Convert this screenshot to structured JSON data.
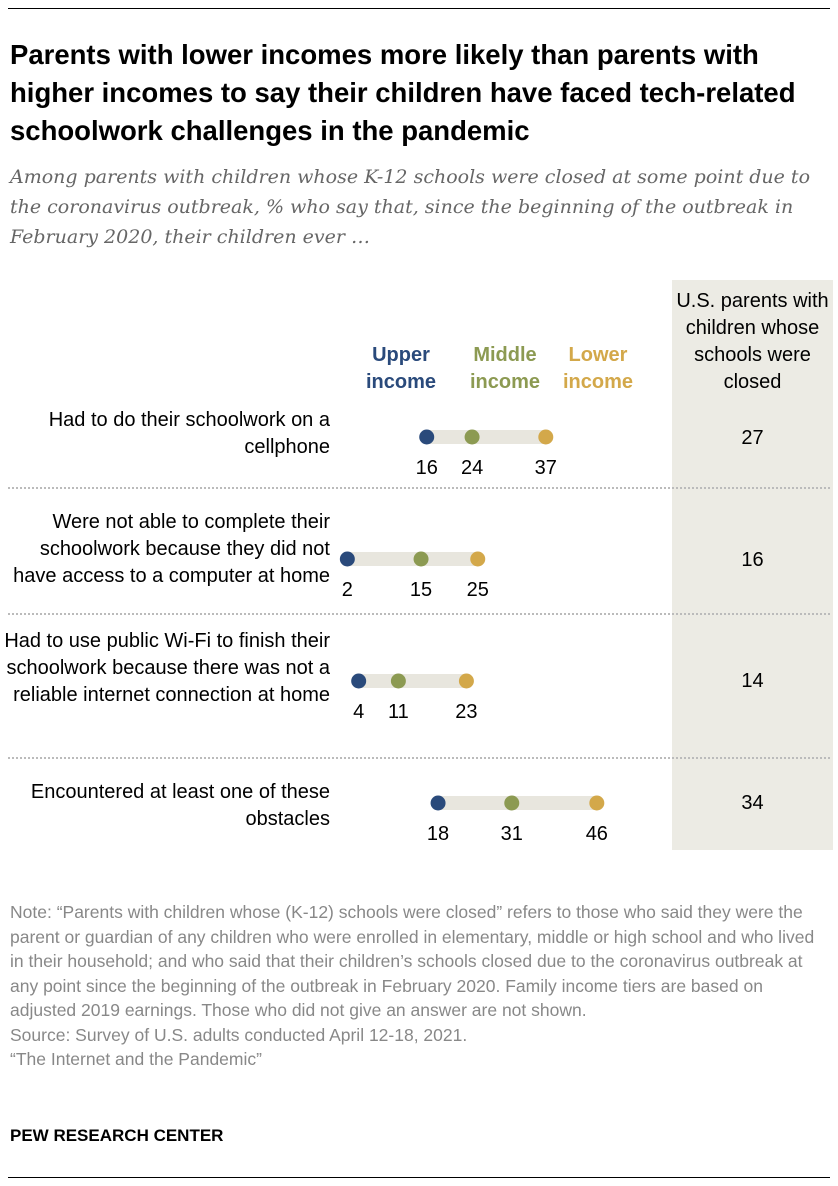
{
  "title": "Parents with lower incomes more likely than parents with higher incomes to say their children have faced tech-related schoolwork challenges in the pandemic",
  "subtitle": "Among parents with children whose K-12 schools were closed at some point due to the coronavirus outbreak, % who say that, since the beginning of the outbreak in February 2020, their children ever …",
  "total_header": "U.S. parents with children whose schools were closed",
  "chart_data": {
    "type": "dot",
    "series": [
      {
        "name": "Upper income",
        "color": "#2a4a7b",
        "values": [
          16,
          2,
          4,
          18
        ]
      },
      {
        "name": "Middle income",
        "color": "#8c9a52",
        "values": [
          24,
          15,
          11,
          31
        ]
      },
      {
        "name": "Lower income",
        "color": "#d3a84a",
        "values": [
          37,
          25,
          23,
          46
        ]
      }
    ],
    "categories": [
      "Had to do their schoolwork on a cellphone",
      "Were not able to complete their schoolwork because they did not have access to a computer at home",
      "Had to use public Wi-Fi to finish their schoolwork because there was not a reliable internet connection at home",
      "Encountered at least one of these obstacles"
    ],
    "totals": [
      "27",
      "16",
      "14",
      "34"
    ]
  },
  "legend": {
    "upper": "Upper income",
    "middle": "Middle income",
    "lower": "Lower income"
  },
  "note": "Note: “Parents with children whose (K-12) schools were closed” refers to those who said they were the parent or guardian of any children who were enrolled in elementary, middle or high school and who lived in their household; and who said that their children’s schools closed due to the coronavirus outbreak at any point since the beginning of the outbreak in February 2020. Family income tiers are based on adjusted 2019 earnings. Those who did not give an answer are not shown.",
  "source": "Source: Survey of U.S. adults conducted April 12-18, 2021.",
  "report": "“The Internet and the Pandemic”",
  "brand": "PEW RESEARCH CENTER"
}
